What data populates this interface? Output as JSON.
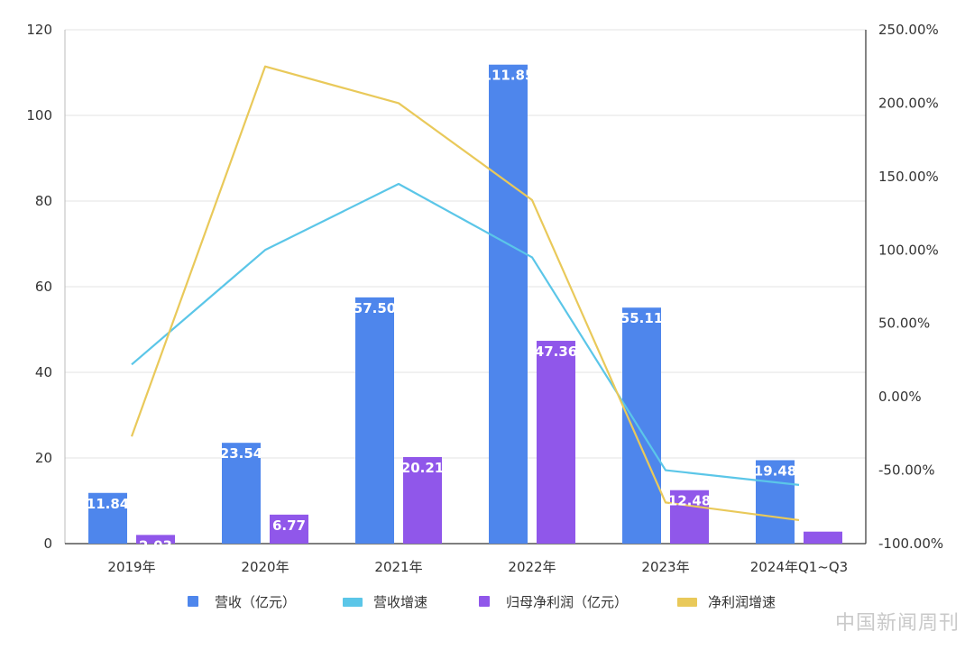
{
  "chart_data": {
    "type": "bar",
    "categories": [
      "2019年",
      "2020年",
      "2021年",
      "2022年",
      "2023年",
      "2024年Q1~Q3"
    ],
    "series": [
      {
        "name": "营收（亿元）",
        "kind": "bar",
        "axis": "left",
        "color": "#4e86ec",
        "values": [
          11.84,
          23.54,
          57.5,
          111.85,
          55.11,
          19.48
        ],
        "labels": [
          "11.84",
          "23.54",
          "57.50",
          "111.85",
          "55.11",
          "19.48"
        ]
      },
      {
        "name": "营收增速",
        "kind": "line",
        "axis": "right",
        "color": "#5bc6e8",
        "values": [
          22,
          100,
          145,
          95,
          -50,
          -60
        ]
      },
      {
        "name": "归母净利润（亿元）",
        "kind": "bar",
        "axis": "left",
        "color": "#9057ea",
        "values": [
          2.03,
          6.77,
          20.21,
          47.36,
          12.48,
          2.8
        ],
        "labels": [
          "2.03",
          "6.77",
          "20.21",
          "47.36",
          "12.48",
          ""
        ]
      },
      {
        "name": "净利润增速",
        "kind": "line",
        "axis": "right",
        "color": "#e9c95a",
        "values": [
          -27,
          225,
          200,
          134,
          -72,
          -84
        ]
      }
    ],
    "y_left": {
      "min": 0,
      "max": 120,
      "ticks": [
        0,
        20,
        40,
        60,
        80,
        100,
        120
      ]
    },
    "y_right": {
      "min": -100,
      "max": 250,
      "ticks": [
        "-100.00%",
        "-50.00%",
        "0.00%",
        "50.00%",
        "100.00%",
        "150.00%",
        "200.00%",
        "250.00%"
      ],
      "tick_values": [
        -100,
        -50,
        0,
        50,
        100,
        150,
        200,
        250
      ]
    },
    "grid": true,
    "legend_position": "bottom",
    "watermark": "中国新闻周刊"
  }
}
